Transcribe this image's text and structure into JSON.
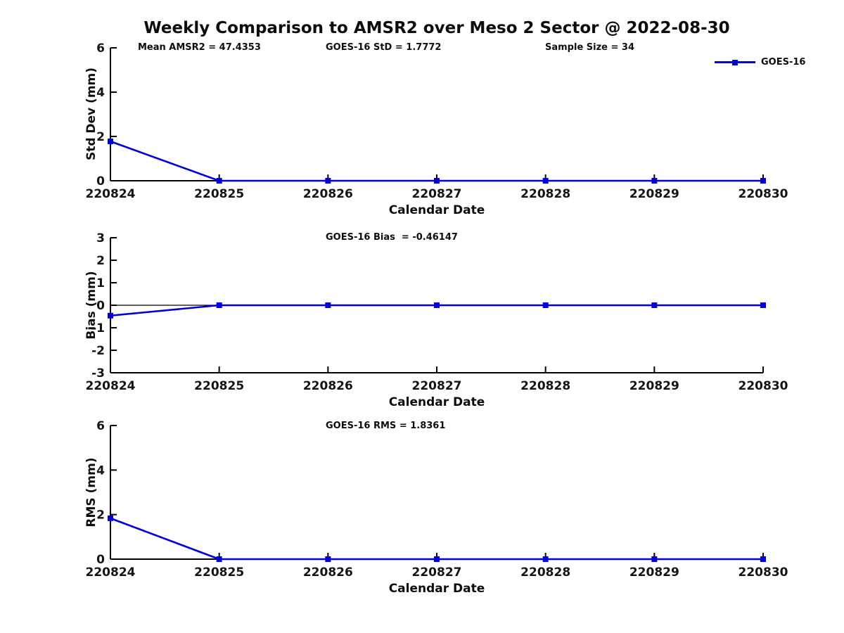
{
  "title": "Weekly Comparison to AMSR2 over Meso 2 Sector @ 2022-08-30",
  "legend": {
    "label": "GOES-16",
    "color": "#0000dd",
    "position": "top-right"
  },
  "colors": {
    "line": "#0000dd",
    "axis": "#000000",
    "text": "#111111"
  },
  "chart_data": [
    {
      "type": "line",
      "panel": "std-dev",
      "ylabel": "Std Dev (mm)",
      "xlabel": "Calendar Date",
      "ylim": [
        0,
        6
      ],
      "yticks": [
        0,
        2,
        4,
        6
      ],
      "categories": [
        "220824",
        "220825",
        "220826",
        "220827",
        "220828",
        "220829",
        "220830"
      ],
      "series": [
        {
          "name": "GOES-16",
          "color": "#0000dd",
          "marker": "square",
          "values": [
            1.7772,
            0,
            0,
            0,
            0,
            0,
            0
          ]
        }
      ],
      "annotations": [
        "Mean AMSR2 = 47.4353",
        "GOES-16 StD = 1.7772",
        "Sample Size = 34"
      ],
      "grid": false,
      "zero_line": false,
      "legend_position": "top-right-outside"
    },
    {
      "type": "line",
      "panel": "bias",
      "ylabel": "Bias (mm)",
      "xlabel": "Calendar Date",
      "ylim": [
        -3,
        3
      ],
      "yticks": [
        -3,
        -2,
        -1,
        0,
        1,
        2,
        3
      ],
      "categories": [
        "220824",
        "220825",
        "220826",
        "220827",
        "220828",
        "220829",
        "220830"
      ],
      "series": [
        {
          "name": "GOES-16",
          "color": "#0000dd",
          "marker": "square",
          "values": [
            -0.46147,
            0,
            0,
            0,
            0,
            0,
            0
          ]
        }
      ],
      "annotations": [
        "GOES-16 Bias  = -0.46147"
      ],
      "grid": false,
      "zero_line": true
    },
    {
      "type": "line",
      "panel": "rms",
      "ylabel": "RMS (mm)",
      "xlabel": "Calendar Date",
      "ylim": [
        0,
        6
      ],
      "yticks": [
        0,
        2,
        4,
        6
      ],
      "categories": [
        "220824",
        "220825",
        "220826",
        "220827",
        "220828",
        "220829",
        "220830"
      ],
      "series": [
        {
          "name": "GOES-16",
          "color": "#0000dd",
          "marker": "square",
          "values": [
            1.8361,
            0,
            0,
            0,
            0,
            0,
            0
          ]
        }
      ],
      "annotations": [
        "GOES-16 RMS = 1.8361"
      ],
      "grid": false,
      "zero_line": false
    }
  ]
}
